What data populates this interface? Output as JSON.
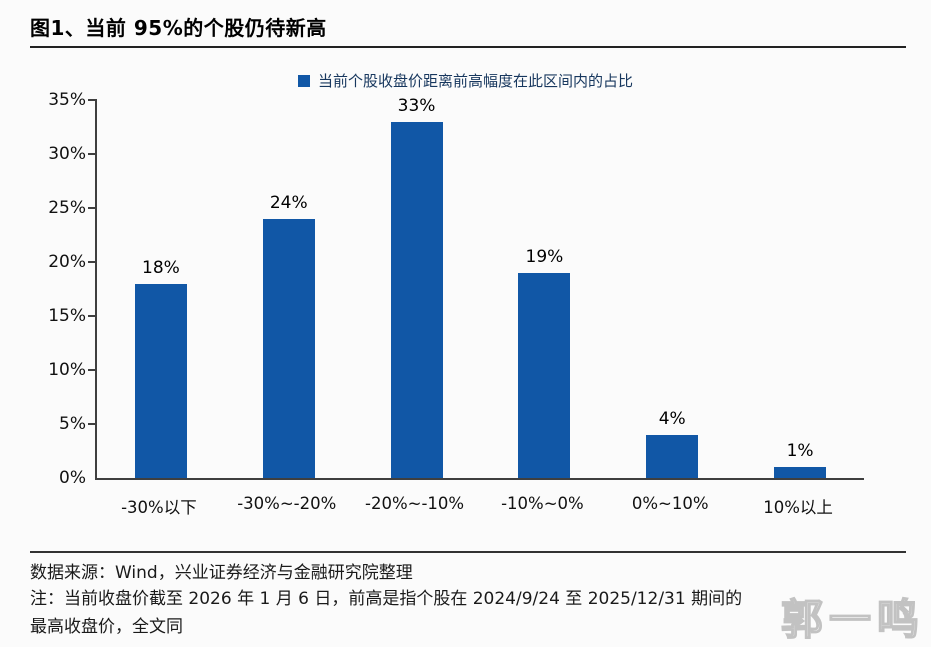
{
  "title": "图1、当前 95%的个股仍待新高",
  "colors": {
    "bar": "#1157a6",
    "legend_text": "#17375e",
    "axis": "#3f3f3f",
    "background": "#fbfbfb"
  },
  "chart_data": {
    "type": "bar",
    "title": "图1、当前 95%的个股仍待新高",
    "legend": "当前个股收盘价距离前高幅度在此区间内的占比",
    "legend_position": "top-center",
    "categories": [
      "-30%以下",
      "-30%~-20%",
      "-20%~-10%",
      "-10%~0%",
      "0%~10%",
      "10%以上"
    ],
    "values": [
      18,
      24,
      33,
      19,
      4,
      1
    ],
    "value_labels": [
      "18%",
      "24%",
      "33%",
      "19%",
      "4%",
      "1%"
    ],
    "xlabel": "",
    "ylabel": "",
    "ylim": [
      0,
      35
    ],
    "ytick_step": 5,
    "ytick_labels": [
      "0%",
      "5%",
      "10%",
      "15%",
      "20%",
      "25%",
      "30%",
      "35%"
    ],
    "grid": false,
    "bar_color": "#1157a6"
  },
  "footer": {
    "source": "数据来源：Wind，兴业证券经济与金融研究院整理",
    "note_lines": [
      "注：当前收盘价截至 2026 年 1 月 6 日，前高是指个股在 2024/9/24 至 2025/12/31 期间的",
      "最高收盘价，全文同"
    ]
  },
  "watermark": "郭一鸣"
}
